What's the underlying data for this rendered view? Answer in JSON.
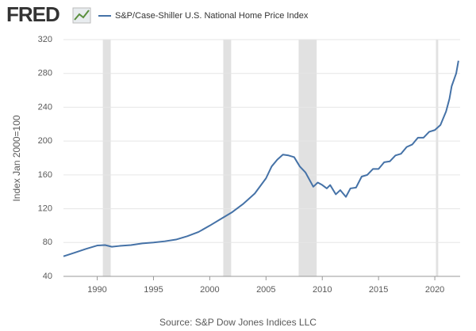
{
  "logo": "FRED",
  "chart_data": {
    "type": "line",
    "legend": "S&P/Case-Shiller U.S. National Home Price Index",
    "y_label": "Index Jan 2000=100",
    "source": "Source: S&P Dow Jones Indices LLC",
    "x": [
      1987.0,
      1988.0,
      1989.0,
      1990.0,
      1990.7,
      1991.3,
      1992.0,
      1993.0,
      1994.0,
      1995.0,
      1996.0,
      1997.0,
      1998.0,
      1999.0,
      2000.0,
      2001.0,
      2002.0,
      2003.0,
      2004.0,
      2005.0,
      2005.5,
      2006.0,
      2006.5,
      2007.0,
      2007.5,
      2008.0,
      2008.5,
      2009.2,
      2009.6,
      2010.0,
      2010.4,
      2010.7,
      2011.2,
      2011.6,
      2012.1,
      2012.5,
      2013.0,
      2013.5,
      2014.0,
      2014.5,
      2015.0,
      2015.5,
      2016.0,
      2016.5,
      2017.0,
      2017.5,
      2018.0,
      2018.5,
      2019.0,
      2019.5,
      2020.0,
      2020.5,
      2021.0,
      2021.3,
      2021.5,
      2021.9,
      2022.1
    ],
    "series": [
      {
        "name": "S&P/Case-Shiller U.S. National Home Price Index",
        "color": "#4572a7",
        "values": [
          63.7,
          68,
          72.5,
          76.5,
          77,
          75,
          76,
          77,
          79,
          80,
          81.5,
          83.5,
          87.5,
          92.5,
          100,
          108,
          116,
          126,
          138,
          156,
          170,
          178,
          184,
          183,
          181,
          170,
          163,
          146,
          151,
          148,
          144,
          148,
          137,
          142,
          134,
          144,
          145,
          158,
          160,
          167,
          167,
          175,
          176,
          183,
          185,
          193,
          196,
          204,
          204,
          211,
          213,
          219,
          235,
          250,
          265,
          280,
          295
        ]
      }
    ],
    "recessions": [
      [
        1990.5,
        1991.2
      ],
      [
        2001.2,
        2001.9
      ],
      [
        2007.9,
        2009.5
      ],
      [
        2020.1,
        2020.3
      ]
    ],
    "recession_color": "#e1e1e1",
    "xlim": [
      1987.0,
      2022.25
    ],
    "xticks": [
      1990,
      1995,
      2000,
      2005,
      2010,
      2015,
      2020
    ],
    "ylim": [
      40,
      320
    ],
    "yticks": [
      40,
      80,
      120,
      160,
      200,
      240,
      280,
      320
    ],
    "grid": true
  }
}
